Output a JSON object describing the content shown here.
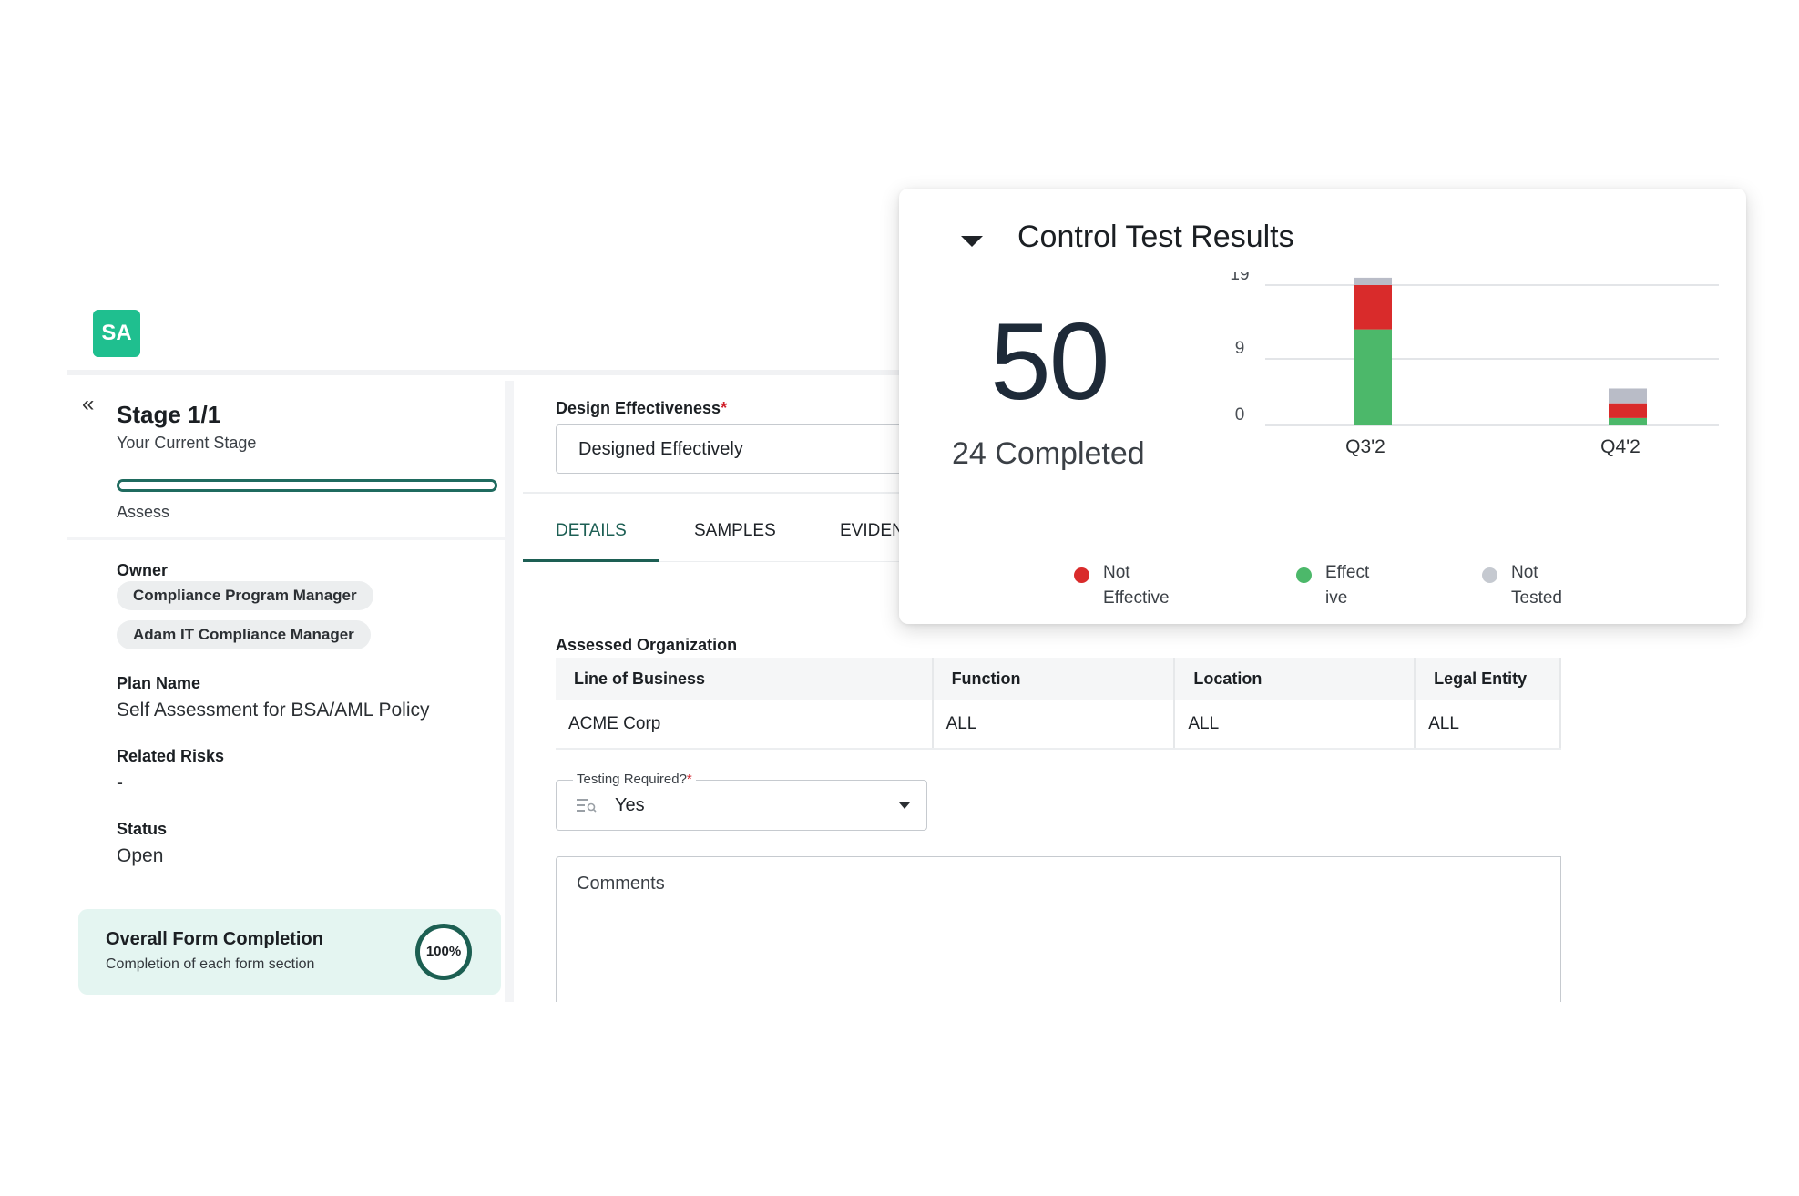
{
  "app": {
    "logo_text": "SA"
  },
  "sidebar": {
    "stage_title": "Stage 1/1",
    "stage_subtitle": "Your Current Stage",
    "progress_label": "Assess",
    "owner_label": "Owner",
    "owners": [
      "Compliance Program Manager",
      "Adam IT Compliance Manager"
    ],
    "plan_name_label": "Plan Name",
    "plan_name": "Self Assessment for BSA/AML Policy",
    "related_risks_label": "Related Risks",
    "related_risks": "-",
    "status_label": "Status",
    "status": "Open",
    "completion_title": "Overall Form Completion",
    "completion_subtitle": "Completion of each form section",
    "completion_percent": "100%"
  },
  "form": {
    "design_effectiveness_label": "Design Effectiveness",
    "required_mark": "*",
    "design_effectiveness_value": "Designed Effectively",
    "tabs": [
      "DETAILS",
      "SAMPLES",
      "EVIDEN"
    ],
    "assessed_org_label": "Assessed Organization",
    "table": {
      "headers": [
        "Line of Business",
        "Function",
        "Location",
        "Legal Entity"
      ],
      "rows": [
        [
          "ACME Corp",
          "ALL",
          "ALL",
          "ALL"
        ]
      ]
    },
    "testing_required_label": "Testing Required?",
    "testing_required_value": "Yes",
    "comments_placeholder": "Comments"
  },
  "card": {
    "title": "Control Test Results",
    "total": "50",
    "completed_text": "24 Completed"
  },
  "chart_data": {
    "type": "bar",
    "stacked": true,
    "categories": [
      "Q3'2",
      "Q4'2"
    ],
    "y_ticks": [
      "19",
      "9",
      "0"
    ],
    "ylim": [
      0,
      19
    ],
    "series": [
      {
        "name": "Effective",
        "color": "#4cb86a",
        "values": [
          13,
          1
        ]
      },
      {
        "name": "Not Effective",
        "color": "#d92b2b",
        "values": [
          6,
          2
        ]
      },
      {
        "name": "Not Tested",
        "color": "#b9bcc7",
        "values": [
          1,
          2
        ]
      }
    ],
    "legend": [
      {
        "label_line1": "Not",
        "label_line2": "Effective",
        "color": "#d92b2b"
      },
      {
        "label_line1": "Effect",
        "label_line2": "ive",
        "color": "#4cb86a"
      },
      {
        "label_line1": "Not",
        "label_line2": "Tested",
        "color": "#c5c9d0"
      }
    ],
    "gridlines": true,
    "legend_position": "bottom"
  }
}
